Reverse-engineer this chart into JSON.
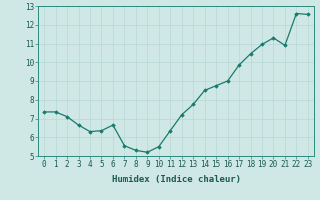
{
  "x": [
    0,
    1,
    2,
    3,
    4,
    5,
    6,
    7,
    8,
    9,
    10,
    11,
    12,
    13,
    14,
    15,
    16,
    17,
    18,
    19,
    20,
    21,
    22,
    23
  ],
  "y": [
    7.35,
    7.35,
    7.1,
    6.65,
    6.3,
    6.35,
    6.65,
    5.55,
    5.3,
    5.2,
    5.5,
    6.35,
    7.2,
    7.75,
    8.5,
    8.75,
    9.0,
    9.85,
    10.45,
    10.95,
    11.3,
    10.9,
    12.6,
    12.55
  ],
  "line_color": "#1a7a6e",
  "marker": "D",
  "marker_size": 1.8,
  "line_width": 0.9,
  "bg_color": "#cfe8e6",
  "grid_color": "#b8d8d6",
  "axis_bg": "#cfe8e6",
  "xlabel": "Humidex (Indice chaleur)",
  "xlim": [
    -0.5,
    23.5
  ],
  "ylim": [
    5.0,
    13.0
  ],
  "yticks": [
    5,
    6,
    7,
    8,
    9,
    10,
    11,
    12,
    13
  ],
  "xticks": [
    0,
    1,
    2,
    3,
    4,
    5,
    6,
    7,
    8,
    9,
    10,
    11,
    12,
    13,
    14,
    15,
    16,
    17,
    18,
    19,
    20,
    21,
    22,
    23
  ],
  "tick_label_color": "#1a5a50",
  "label_fontsize": 6.5,
  "tick_fontsize": 5.5,
  "spine_color": "#2a8a7e"
}
